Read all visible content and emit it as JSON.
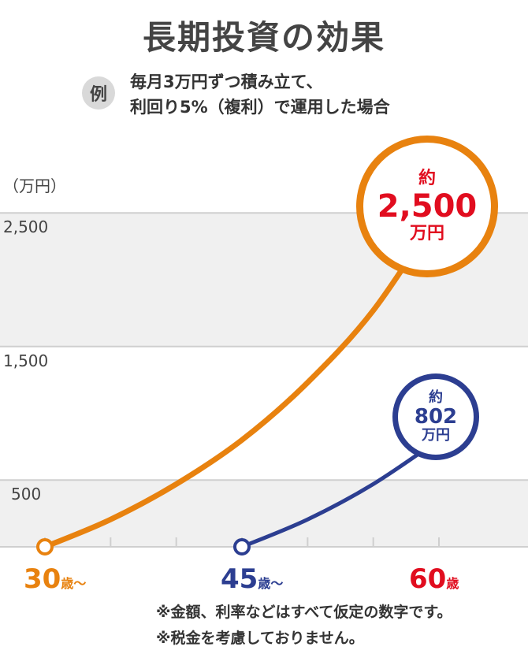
{
  "title": "長期投資の効果",
  "example_badge": "例",
  "subtitle": [
    "毎月3万円ずつ積み立て、",
    "利回り5%（複利）で運用した場合"
  ],
  "notes": [
    "※金額、利率などはすべて仮定の数字です。",
    "※税金を考慮しておりません。"
  ],
  "colors": {
    "orange": "#e8820f",
    "navy": "#2c3e91",
    "red": "#e10d1f",
    "band": "#f0f0f0",
    "grid": "#cfcfcf"
  },
  "chart_data": {
    "type": "line",
    "ylabel": "（万円）",
    "y_ticks": [
      500,
      1500,
      2500
    ],
    "y_tick_labels": [
      "500",
      "1,500",
      "2,500"
    ],
    "x_ticks": [
      30,
      45,
      60
    ],
    "x_tick_labels": [
      {
        "num": "30",
        "suffix": "歳〜"
      },
      {
        "num": "45",
        "suffix": "歳〜"
      },
      {
        "num": "60",
        "suffix": "歳"
      }
    ],
    "ylim": [
      0,
      2600
    ],
    "xlim": [
      30,
      63
    ],
    "series": [
      {
        "start_age": 30,
        "color": "orange",
        "x": [
          30,
          35,
          40,
          45,
          50,
          55,
          60
        ],
        "y": [
          0,
          205,
          470,
          800,
          1230,
          1770,
          2500
        ],
        "callout": {
          "approx": "約",
          "value": "2,500",
          "unit": "万円"
        }
      },
      {
        "start_age": 45,
        "color": "navy",
        "x": [
          45,
          50,
          55,
          60
        ],
        "y": [
          0,
          205,
          470,
          802
        ],
        "callout": {
          "approx": "約",
          "value": "802",
          "unit": "万円"
        }
      }
    ]
  }
}
